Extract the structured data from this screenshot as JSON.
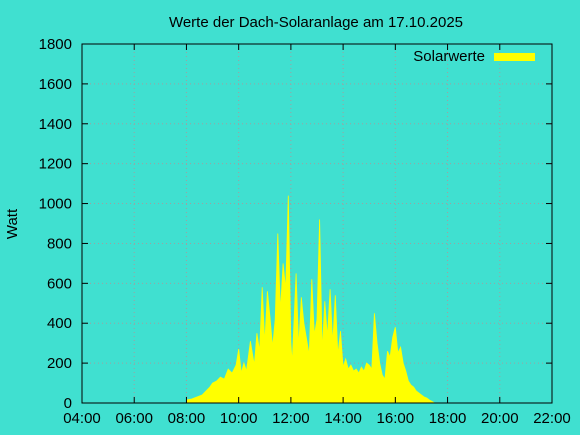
{
  "chart_data": {
    "type": "area",
    "title": "Werte der Dach-Solaranlage am 17.10.2025",
    "xlabel": "",
    "ylabel": "Watt",
    "x_tick_labels": [
      "04:00",
      "06:00",
      "08:00",
      "10:00",
      "12:00",
      "14:00",
      "16:00",
      "18:00",
      "20:00",
      "22:00"
    ],
    "x_range_hours": [
      4,
      22
    ],
    "ylim": [
      0,
      1800
    ],
    "y_ticks": [
      0,
      200,
      400,
      600,
      800,
      1000,
      1200,
      1400,
      1600,
      1800
    ],
    "grid": true,
    "legend_position": "top-right",
    "series": [
      {
        "name": "Solarwerte",
        "color": "#ffff00",
        "x_hours": [
          8.0,
          8.2,
          8.4,
          8.6,
          8.75,
          8.9,
          9.0,
          9.15,
          9.3,
          9.45,
          9.6,
          9.75,
          9.9,
          10.0,
          10.1,
          10.2,
          10.3,
          10.45,
          10.6,
          10.7,
          10.8,
          10.9,
          11.0,
          11.1,
          11.2,
          11.3,
          11.4,
          11.5,
          11.6,
          11.7,
          11.8,
          11.9,
          12.0,
          12.05,
          12.1,
          12.2,
          12.3,
          12.4,
          12.5,
          12.6,
          12.7,
          12.8,
          12.9,
          13.0,
          13.1,
          13.2,
          13.3,
          13.4,
          13.5,
          13.6,
          13.7,
          13.8,
          13.9,
          14.0,
          14.1,
          14.2,
          14.3,
          14.4,
          14.5,
          14.6,
          14.7,
          14.8,
          14.9,
          15.0,
          15.1,
          15.2,
          15.3,
          15.4,
          15.5,
          15.6,
          15.7,
          15.8,
          15.9,
          16.0,
          16.1,
          16.2,
          16.3,
          16.4,
          16.5,
          16.6,
          16.7,
          16.8,
          16.9,
          17.0,
          17.1,
          17.2,
          17.3,
          17.4,
          17.5
        ],
        "values": [
          15,
          20,
          30,
          40,
          60,
          80,
          100,
          110,
          130,
          120,
          170,
          150,
          190,
          270,
          150,
          200,
          160,
          310,
          190,
          350,
          260,
          580,
          300,
          560,
          430,
          280,
          420,
          850,
          460,
          700,
          570,
          1040,
          300,
          200,
          350,
          650,
          280,
          530,
          400,
          320,
          240,
          620,
          340,
          420,
          920,
          260,
          510,
          330,
          570,
          300,
          540,
          240,
          360,
          180,
          220,
          170,
          190,
          160,
          170,
          150,
          180,
          160,
          200,
          190,
          170,
          450,
          300,
          200,
          140,
          120,
          260,
          230,
          330,
          380,
          250,
          280,
          200,
          160,
          110,
          90,
          80,
          60,
          50,
          40,
          30,
          25,
          15,
          8,
          0
        ]
      }
    ]
  }
}
